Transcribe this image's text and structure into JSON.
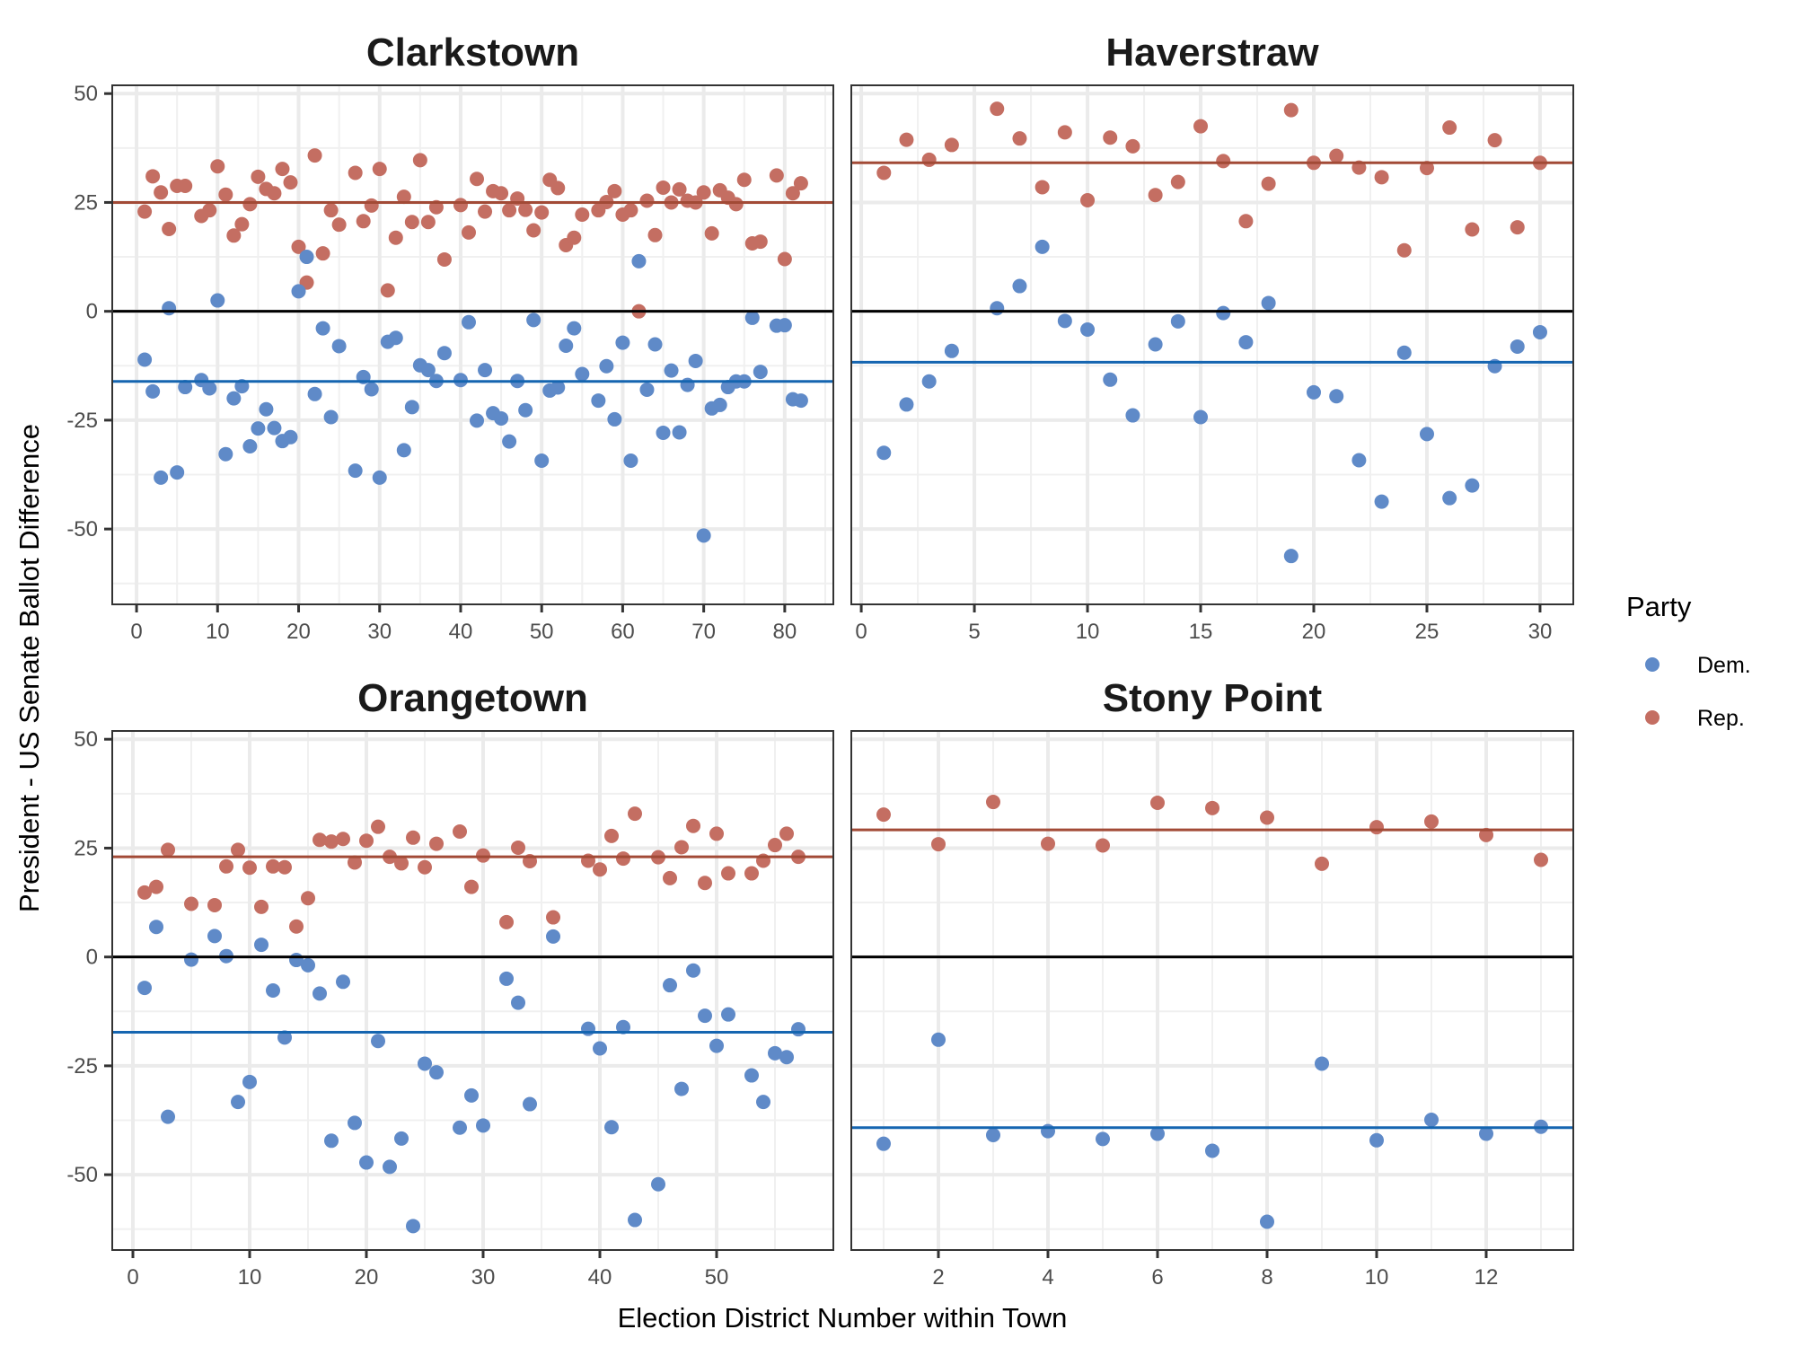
{
  "chart_data": {
    "type": "scatter",
    "xlabel": "Election District Number within Town",
    "ylabel": "President - US Senate Ballot Difference",
    "ylim": [
      -67.3,
      51.9
    ],
    "y_ticks": [
      -50,
      -25,
      0,
      25,
      50
    ],
    "y_tick_labels": [
      "-50",
      "-25",
      "0",
      "25",
      "50"
    ],
    "grid": true,
    "reference_line": 0,
    "legend": {
      "title": "Party",
      "placement": "right",
      "entries": [
        {
          "label": "Dem.",
          "color": "#5F8AC8"
        },
        {
          "label": "Rep.",
          "color": "#C46E62"
        }
      ]
    },
    "colors": {
      "dem_point": "#5F8AC8",
      "rep_point": "#C46E62",
      "dem_mean_line": "#1565B0",
      "rep_mean_line": "#A24A36",
      "zero_line": "#000000"
    },
    "facets": [
      {
        "title": "Clarkstown",
        "xlim": [
          -3,
          86
        ],
        "x_ticks": [
          0,
          10,
          20,
          30,
          40,
          50,
          60,
          70,
          80
        ],
        "x_tick_labels": [
          "0",
          "10",
          "20",
          "30",
          "40",
          "50",
          "60",
          "70",
          "80"
        ],
        "x_minor": [
          5,
          15,
          25,
          35,
          45,
          55,
          65,
          75,
          85
        ],
        "mean": {
          "Dem.": -16.1,
          "Rep.": 25.0
        },
        "series": [
          {
            "name": "Rep.",
            "x": [
              1,
              2,
              3,
              4,
              5,
              6,
              8,
              9,
              10,
              11,
              12,
              13,
              14,
              15,
              16,
              17,
              18,
              19,
              20,
              21,
              22,
              23,
              24,
              25,
              27,
              28,
              29,
              30,
              31,
              32,
              33,
              34,
              35,
              36,
              37,
              38,
              40,
              41,
              42,
              43,
              44,
              45,
              46,
              47,
              48,
              49,
              50,
              51,
              52,
              53,
              54,
              55,
              57,
              58,
              59,
              60,
              61,
              62,
              63,
              64,
              65,
              66,
              67,
              68,
              69,
              70,
              71,
              72,
              73,
              74,
              75,
              76,
              77,
              79,
              80,
              81,
              82
            ],
            "y": [
              22.9,
              31,
              27.3,
              18.9,
              28.8,
              28.8,
              21.9,
              23.2,
              33.3,
              26.8,
              17.4,
              20,
              24.6,
              30.9,
              28.1,
              27.1,
              32.7,
              29.6,
              14.8,
              6.6,
              35.8,
              13.3,
              23.2,
              19.9,
              31.8,
              20.7,
              24.3,
              32.7,
              4.8,
              16.9,
              26.3,
              20.5,
              34.7,
              20.5,
              23.9,
              11.9,
              24.4,
              18.1,
              30.4,
              22.9,
              27.6,
              27.1,
              23.2,
              25.9,
              23.3,
              18.6,
              22.7,
              30.2,
              28.3,
              15.2,
              16.9,
              22.2,
              23.2,
              25.1,
              27.6,
              22.2,
              23.2,
              0,
              25.4,
              17.5,
              28.4,
              25,
              28,
              25.4,
              25,
              27.3,
              17.9,
              27.8,
              26.1,
              24.6,
              30.2,
              15.6,
              16,
              31.2,
              12,
              27.1,
              29.4
            ]
          },
          {
            "name": "Dem.",
            "x": [
              1,
              2,
              3,
              4,
              5,
              6,
              8,
              9,
              10,
              11,
              12,
              13,
              14,
              15,
              16,
              17,
              18,
              19,
              20,
              21,
              22,
              23,
              24,
              25,
              27,
              28,
              29,
              30,
              31,
              32,
              33,
              34,
              35,
              36,
              37,
              38,
              40,
              41,
              42,
              43,
              44,
              45,
              46,
              47,
              48,
              49,
              50,
              51,
              52,
              53,
              54,
              55,
              57,
              58,
              59,
              60,
              61,
              62,
              63,
              64,
              65,
              66,
              67,
              68,
              69,
              70,
              71,
              72,
              73,
              74,
              75,
              76,
              77,
              79,
              80,
              81,
              82
            ],
            "y": [
              -11.1,
              -18.4,
              -38.2,
              0.7,
              -37,
              -17.4,
              -15.8,
              -17.7,
              2.5,
              -32.8,
              -20,
              -17.2,
              -31,
              -26.9,
              -22.5,
              -26.8,
              -29.8,
              -28.9,
              4.6,
              12.5,
              -19,
              -3.9,
              -24.3,
              -8,
              -36.6,
              -15.1,
              -17.9,
              -38.2,
              -7,
              -6.1,
              -31.9,
              -22,
              -12.4,
              -13.5,
              -16,
              -9.6,
              -15.8,
              -2.5,
              -25.1,
              -13.5,
              -23.4,
              -24.6,
              -29.9,
              -16,
              -22.7,
              -2,
              -34.3,
              -18.2,
              -17.5,
              -7.9,
              -3.9,
              -14.4,
              -20.5,
              -12.6,
              -24.8,
              -7.2,
              -34.3,
              11.5,
              -18,
              -7.6,
              -27.9,
              -13.6,
              -27.8,
              -16.9,
              -11.4,
              -51.5,
              -22.3,
              -21.5,
              -17.4,
              -16.1,
              -16.1,
              -1.5,
              -13.9,
              -3.3,
              -3.2,
              -20.2,
              -20.5
            ]
          }
        ]
      },
      {
        "title": "Haverstraw",
        "xlim": [
          -0.44,
          31.47
        ],
        "x_ticks": [
          0,
          5,
          10,
          15,
          20,
          25,
          30
        ],
        "x_tick_labels": [
          "0",
          "5",
          "10",
          "15",
          "20",
          "25",
          "30"
        ],
        "x_minor": [
          2.5,
          7.5,
          12.5,
          17.5,
          22.5,
          27.5
        ],
        "mean": {
          "Dem.": -11.7,
          "Rep.": 34.1
        },
        "series": [
          {
            "name": "Rep.",
            "x": [
              1,
              2,
              3,
              4,
              6,
              7,
              8,
              9,
              10,
              11,
              12,
              13,
              14,
              15,
              16,
              17,
              18,
              19,
              20,
              21,
              22,
              23,
              24,
              25,
              26,
              27,
              28,
              29,
              30
            ],
            "y": [
              31.8,
              39.4,
              34.8,
              38.2,
              46.5,
              39.7,
              28.5,
              41.1,
              25.5,
              39.9,
              37.9,
              26.7,
              29.7,
              42.5,
              34.5,
              20.7,
              29.3,
              46.2,
              34.1,
              35.7,
              33,
              30.8,
              14,
              32.9,
              42.2,
              18.8,
              39.3,
              19.3,
              34.1
            ]
          },
          {
            "name": "Dem.",
            "x": [
              1,
              2,
              3,
              4,
              6,
              7,
              8,
              9,
              10,
              11,
              12,
              13,
              14,
              15,
              16,
              17,
              18,
              19,
              20,
              21,
              22,
              23,
              24,
              25,
              26,
              27,
              28,
              29,
              30
            ],
            "y": [
              -32.5,
              -21.4,
              -16.1,
              -9.1,
              0.7,
              5.8,
              14.8,
              -2.2,
              -4.2,
              -15.7,
              -23.9,
              -7.6,
              -2.3,
              -24.3,
              -0.4,
              -7.1,
              1.9,
              -56.2,
              -18.6,
              -19.5,
              -34.2,
              -43.7,
              -9.5,
              -28.2,
              -42.9,
              -40,
              -12.6,
              -8.1,
              -4.8
            ]
          }
        ]
      },
      {
        "title": "Orangetown",
        "xlim": [
          -1.77,
          60
        ],
        "x_ticks": [
          0,
          10,
          20,
          30,
          40,
          50
        ],
        "x_tick_labels": [
          "0",
          "10",
          "20",
          "30",
          "40",
          "50"
        ],
        "x_minor": [
          5,
          15,
          25,
          35,
          45,
          55
        ],
        "mean": {
          "Dem.": -17.3,
          "Rep.": 23.0
        },
        "series": [
          {
            "name": "Rep.",
            "x": [
              1,
              2,
              3,
              5,
              7,
              8,
              9,
              10,
              11,
              12,
              13,
              14,
              15,
              16,
              17,
              18,
              19,
              20,
              21,
              22,
              23,
              24,
              25,
              26,
              28,
              29,
              30,
              32,
              33,
              34,
              36,
              39,
              40,
              41,
              42,
              43,
              45,
              46,
              47,
              48,
              49,
              50,
              51,
              53,
              54,
              55,
              56,
              57
            ],
            "y": [
              14.8,
              16.1,
              24.6,
              12.2,
              11.9,
              20.8,
              24.6,
              20.5,
              11.5,
              20.8,
              20.6,
              7,
              13.5,
              26.9,
              26.5,
              27.1,
              21.7,
              26.7,
              29.9,
              23,
              21.5,
              27.4,
              20.6,
              26,
              28.8,
              16.1,
              23.3,
              8,
              25.1,
              22,
              9.1,
              22.1,
              20.1,
              27.8,
              22.6,
              32.9,
              22.9,
              18.1,
              25.2,
              30.1,
              17,
              28.3,
              19.2,
              19.2,
              22.1,
              25.7,
              28.3,
              23
            ]
          },
          {
            "name": "Dem.",
            "x": [
              1,
              2,
              3,
              5,
              7,
              8,
              9,
              10,
              11,
              12,
              13,
              14,
              15,
              16,
              17,
              18,
              19,
              20,
              21,
              22,
              23,
              24,
              25,
              26,
              28,
              29,
              30,
              32,
              33,
              34,
              36,
              39,
              40,
              41,
              42,
              43,
              45,
              46,
              47,
              48,
              49,
              50,
              51,
              53,
              54,
              55,
              56,
              57
            ],
            "y": [
              -7.1,
              6.9,
              -36.7,
              -0.6,
              4.8,
              0.2,
              -33.3,
              -28.7,
              2.8,
              -7.7,
              -18.5,
              -0.7,
              -1.9,
              -8.4,
              -42.2,
              -5.7,
              -38.1,
              -47.2,
              -19.3,
              -48.2,
              -41.7,
              -61.8,
              -24.5,
              -26.5,
              -39.2,
              -31.8,
              -38.7,
              -5,
              -10.5,
              -33.8,
              4.7,
              -16.5,
              -21,
              -39.1,
              -16.1,
              -60.4,
              -52.2,
              -6.5,
              -30.3,
              -3.1,
              -13.5,
              -20.4,
              -13.2,
              -27.2,
              -33.3,
              -22.1,
              -23,
              -16.6
            ]
          }
        ]
      },
      {
        "title": "Stony Point",
        "xlim": [
          0.41,
          13.59
        ],
        "x_ticks": [
          2,
          4,
          6,
          8,
          10,
          12
        ],
        "x_tick_labels": [
          "2",
          "4",
          "6",
          "8",
          "10",
          "12"
        ],
        "x_minor": [
          1,
          3,
          5,
          7,
          9,
          11,
          13
        ],
        "mean": {
          "Dem.": -39.2,
          "Rep.": 29.2
        },
        "series": [
          {
            "name": "Rep.",
            "x": [
              1,
              2,
              3,
              4,
              5,
              6,
              7,
              8,
              9,
              10,
              11,
              12,
              13
            ],
            "y": [
              32.7,
              25.9,
              35.6,
              26,
              25.6,
              35.4,
              34.2,
              32,
              21.4,
              29.8,
              31.1,
              28,
              22.3
            ]
          },
          {
            "name": "Dem.",
            "x": [
              1,
              2,
              3,
              4,
              5,
              6,
              7,
              8,
              9,
              10,
              11,
              12,
              13
            ],
            "y": [
              -42.9,
              -19,
              -40.9,
              -40,
              -41.8,
              -40.6,
              -44.5,
              -60.8,
              -24.5,
              -42.1,
              -37.4,
              -40.6,
              -39
            ]
          }
        ]
      }
    ]
  }
}
